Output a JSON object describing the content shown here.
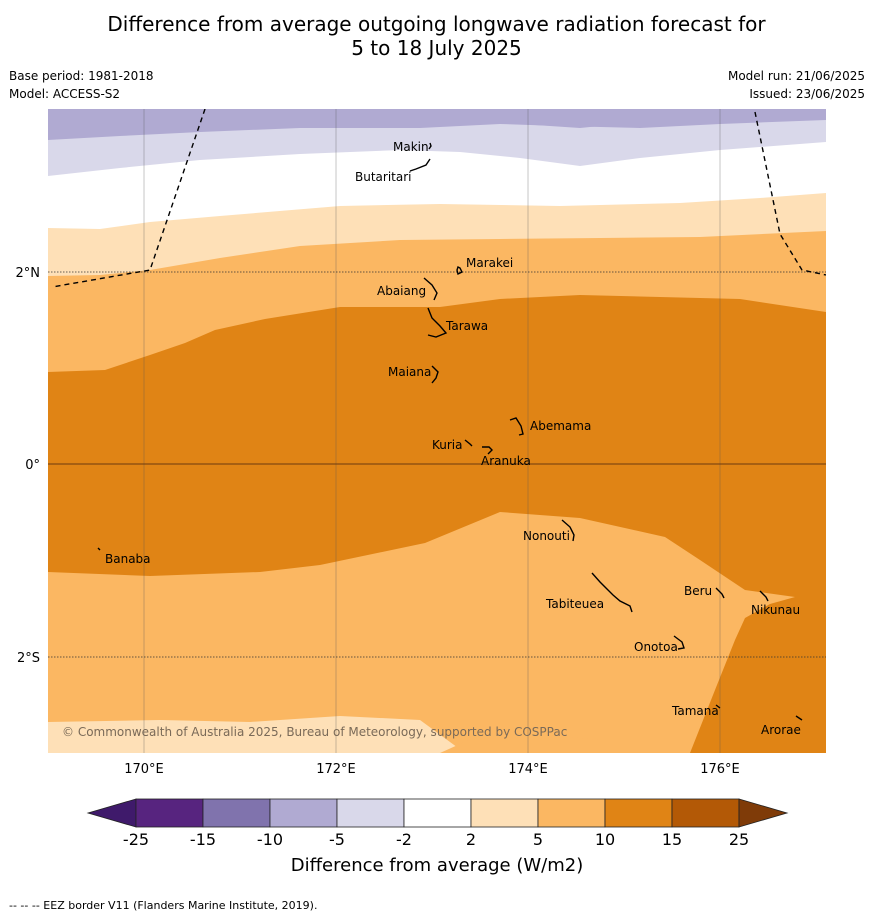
{
  "header": {
    "title_line1": "Difference from average outgoing longwave radiation forecast for",
    "title_line2": "5 to 18 July 2025",
    "base_period": "Base period: 1981-2018",
    "model": "Model: ACCESS-S2",
    "model_run": "Model run: 21/06/2025",
    "issued": "Issued: 23/06/2025"
  },
  "map": {
    "lat_labels": [
      "2°N",
      "0°",
      "2°S"
    ],
    "lon_labels": [
      "170°E",
      "172°E",
      "174°E",
      "176°E"
    ],
    "copyright": "© Commonwealth of Australia 2025, Bureau of Meteorology, supported by COSPPac",
    "islands": [
      "Makin",
      "Butaritari",
      "Marakei",
      "Abaiang",
      "Tarawa",
      "Maiana",
      "Abemama",
      "Kuria",
      "Aranuka",
      "Nonouti",
      "Banaba",
      "Tabiteuea",
      "Beru",
      "Nikunau",
      "Onotoa",
      "Tamana",
      "Arorae"
    ]
  },
  "legend": {
    "title": "Difference from average (W/m2)",
    "ticks": [
      "-25",
      "-15",
      "-10",
      "-5",
      "-2",
      "2",
      "5",
      "10",
      "15",
      "25"
    ],
    "colors": [
      "#3f1a6b",
      "#57247f",
      "#8073ad",
      "#b0aad2",
      "#d9d8ea",
      "#ffffff",
      "#fee0b7",
      "#fbb762",
      "#e08415",
      "#b35906",
      "#7f3b08"
    ]
  },
  "footnote": "--  --  -- EEZ border V11 (Flanders Marine Institute, 2019)."
}
